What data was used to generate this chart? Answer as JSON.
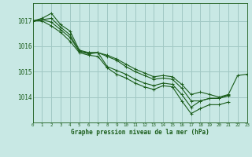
{
  "title": "Graphe pression niveau de la mer (hPa)",
  "xlabel_ticks": [
    0,
    1,
    2,
    3,
    4,
    5,
    6,
    7,
    8,
    9,
    10,
    11,
    12,
    13,
    14,
    15,
    16,
    17,
    18,
    19,
    20,
    21,
    22,
    23
  ],
  "yticks": [
    1014,
    1015,
    1016,
    1017
  ],
  "ylim": [
    1013.0,
    1017.7
  ],
  "xlim": [
    0,
    23
  ],
  "bg_color": "#c8e8e4",
  "grid_color": "#a0c8c4",
  "line_color": "#1a5c1a",
  "curves": [
    {
      "x": [
        0,
        1,
        2,
        3,
        4,
        5,
        6,
        7,
        8,
        9,
        10,
        11,
        12,
        13,
        14,
        15,
        16,
        17,
        18,
        19,
        20,
        21,
        22,
        23
      ],
      "y": [
        1017.0,
        1017.1,
        1017.3,
        1016.85,
        1016.6,
        1015.85,
        1015.75,
        1015.75,
        1015.65,
        1015.5,
        1015.3,
        1015.1,
        1014.95,
        1014.8,
        1014.85,
        1014.8,
        1014.5,
        1014.1,
        1014.2,
        1014.1,
        1014.0,
        1014.1,
        1014.85,
        1014.9
      ]
    },
    {
      "x": [
        0,
        1,
        2,
        3,
        4,
        5,
        6,
        7,
        8,
        9,
        10,
        11,
        12,
        13,
        14,
        15,
        16,
        17,
        18,
        19,
        20,
        21,
        22,
        23
      ],
      "y": [
        1017.0,
        1017.05,
        1017.1,
        1016.75,
        1016.45,
        1015.8,
        1015.75,
        1015.75,
        1015.6,
        1015.45,
        1015.2,
        1015.0,
        1014.85,
        1014.7,
        1014.75,
        1014.7,
        1014.35,
        1013.85,
        1013.85,
        1013.95,
        1013.95,
        1014.05,
        null,
        null
      ]
    },
    {
      "x": [
        0,
        1,
        2,
        3,
        4,
        5,
        6,
        7,
        8,
        9,
        10,
        11,
        12,
        13,
        14,
        15,
        16,
        17,
        18,
        19,
        20,
        21,
        22,
        23
      ],
      "y": [
        1017.0,
        1017.05,
        1016.95,
        1016.65,
        1016.35,
        1015.8,
        1015.7,
        1015.75,
        1015.2,
        1015.05,
        1014.9,
        1014.7,
        1014.55,
        1014.45,
        1014.55,
        1014.5,
        1014.1,
        1013.6,
        1013.85,
        1013.95,
        1013.95,
        1014.08,
        null,
        null
      ]
    },
    {
      "x": [
        0,
        1,
        2,
        3,
        4,
        5,
        6,
        7,
        8,
        9,
        10,
        11,
        12,
        13,
        14,
        15,
        16,
        17,
        18,
        19,
        20,
        21,
        22,
        23
      ],
      "y": [
        1017.0,
        1017.0,
        1016.8,
        1016.55,
        1016.2,
        1015.75,
        1015.65,
        1015.6,
        1015.15,
        1014.9,
        1014.75,
        1014.55,
        1014.4,
        1014.3,
        1014.45,
        1014.4,
        1013.85,
        1013.35,
        1013.55,
        1013.7,
        1013.7,
        1013.8,
        null,
        null
      ]
    }
  ]
}
